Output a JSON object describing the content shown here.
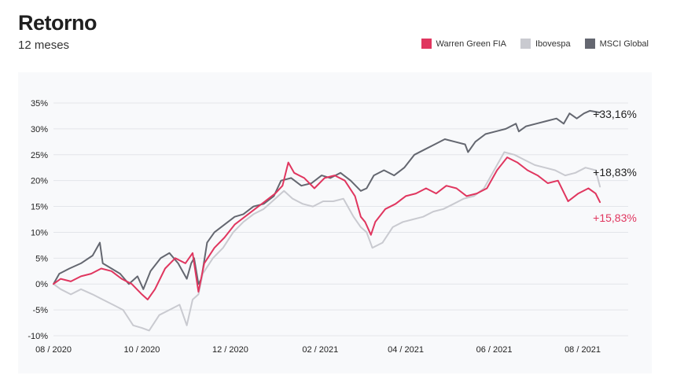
{
  "header": {
    "title": "Retorno",
    "subtitle": "12 meses"
  },
  "chart_data": {
    "type": "line",
    "title": "Retorno",
    "subtitle": "12 meses",
    "xlabel": "",
    "ylabel": "",
    "xlim": [
      "2020-08-01",
      "2021-08-16"
    ],
    "ylim": [
      -10,
      35
    ],
    "y_ticks": [
      35,
      30,
      25,
      20,
      15,
      10,
      5,
      0,
      -5,
      -10
    ],
    "y_tick_labels": [
      "35%",
      "30%",
      "25%",
      "20%",
      "15%",
      "10%",
      "5%",
      "0%",
      "-5%",
      "-10%"
    ],
    "x_ticks": [
      "2020-08-01",
      "2020-10-01",
      "2020-12-01",
      "2021-02-01",
      "2021-04-01",
      "2021-06-01",
      "2021-08-01"
    ],
    "x_tick_labels": [
      "08 / 2020",
      "10 / 2020",
      "12 / 2020",
      "02 / 2021",
      "04 / 2021",
      "06 / 2021",
      "08 / 2021"
    ],
    "grid": "horizontal",
    "legend_position": "top-right",
    "series": [
      {
        "name": "MSCI Global",
        "color": "#646770",
        "end_label": "+33,16%",
        "end_label_color": "#1f1f1f",
        "points": [
          [
            "2020-08-01",
            0
          ],
          [
            "2020-08-05",
            2
          ],
          [
            "2020-08-12",
            3
          ],
          [
            "2020-08-20",
            4
          ],
          [
            "2020-08-28",
            5.5
          ],
          [
            "2020-09-02",
            8
          ],
          [
            "2020-09-04",
            4
          ],
          [
            "2020-09-10",
            3
          ],
          [
            "2020-09-16",
            2
          ],
          [
            "2020-09-22",
            0
          ],
          [
            "2020-09-28",
            1.5
          ],
          [
            "2020-10-02",
            -1
          ],
          [
            "2020-10-07",
            2.5
          ],
          [
            "2020-10-14",
            5
          ],
          [
            "2020-10-20",
            6
          ],
          [
            "2020-10-26",
            4
          ],
          [
            "2020-11-01",
            1
          ],
          [
            "2020-11-04",
            4
          ],
          [
            "2020-11-06",
            5
          ],
          [
            "2020-11-09",
            0
          ],
          [
            "2020-11-11",
            1
          ],
          [
            "2020-11-15",
            8
          ],
          [
            "2020-11-20",
            10
          ],
          [
            "2020-11-27",
            11.5
          ],
          [
            "2020-12-04",
            13
          ],
          [
            "2020-12-10",
            13.5
          ],
          [
            "2020-12-17",
            15
          ],
          [
            "2020-12-24",
            15.5
          ],
          [
            "2020-12-31",
            17
          ],
          [
            "2021-01-05",
            20
          ],
          [
            "2021-01-12",
            20.5
          ],
          [
            "2021-01-19",
            19
          ],
          [
            "2021-01-26",
            19.5
          ],
          [
            "2021-02-02",
            21
          ],
          [
            "2021-02-08",
            20.5
          ],
          [
            "2021-02-15",
            21.5
          ],
          [
            "2021-02-22",
            20
          ],
          [
            "2021-03-01",
            18
          ],
          [
            "2021-03-05",
            18.5
          ],
          [
            "2021-03-10",
            21
          ],
          [
            "2021-03-17",
            22
          ],
          [
            "2021-03-24",
            21
          ],
          [
            "2021-03-31",
            22.5
          ],
          [
            "2021-04-07",
            25
          ],
          [
            "2021-04-14",
            26
          ],
          [
            "2021-04-21",
            27
          ],
          [
            "2021-04-28",
            28
          ],
          [
            "2021-05-05",
            27.5
          ],
          [
            "2021-05-12",
            27
          ],
          [
            "2021-05-14",
            25.5
          ],
          [
            "2021-05-19",
            27.5
          ],
          [
            "2021-05-26",
            29
          ],
          [
            "2021-06-02",
            29.5
          ],
          [
            "2021-06-09",
            30
          ],
          [
            "2021-06-16",
            31
          ],
          [
            "2021-06-18",
            29.5
          ],
          [
            "2021-06-23",
            30.5
          ],
          [
            "2021-06-30",
            31
          ],
          [
            "2021-07-07",
            31.5
          ],
          [
            "2021-07-14",
            32
          ],
          [
            "2021-07-19",
            31
          ],
          [
            "2021-07-23",
            33
          ],
          [
            "2021-07-28",
            32
          ],
          [
            "2021-08-02",
            33
          ],
          [
            "2021-08-06",
            33.5
          ],
          [
            "2021-08-13",
            33.16
          ]
        ]
      },
      {
        "name": "Ibovespa",
        "color": "#c9cad0",
        "end_label": "+18,83%",
        "end_label_color": "#1f1f1f",
        "points": [
          [
            "2020-08-01",
            0
          ],
          [
            "2020-08-06",
            -1
          ],
          [
            "2020-08-13",
            -2
          ],
          [
            "2020-08-20",
            -1
          ],
          [
            "2020-08-28",
            -2
          ],
          [
            "2020-09-04",
            -3
          ],
          [
            "2020-09-11",
            -4
          ],
          [
            "2020-09-18",
            -5
          ],
          [
            "2020-09-25",
            -8
          ],
          [
            "2020-10-01",
            -8.5
          ],
          [
            "2020-10-06",
            -9
          ],
          [
            "2020-10-13",
            -6
          ],
          [
            "2020-10-20",
            -5
          ],
          [
            "2020-10-27",
            -4
          ],
          [
            "2020-11-01",
            -8
          ],
          [
            "2020-11-05",
            -3
          ],
          [
            "2020-11-09",
            -2
          ],
          [
            "2020-11-12",
            2
          ],
          [
            "2020-11-19",
            5
          ],
          [
            "2020-11-26",
            7
          ],
          [
            "2020-12-03",
            10
          ],
          [
            "2020-12-10",
            12
          ],
          [
            "2020-12-17",
            13.5
          ],
          [
            "2020-12-24",
            14.5
          ],
          [
            "2020-12-30",
            16
          ],
          [
            "2021-01-07",
            18
          ],
          [
            "2021-01-13",
            16.5
          ],
          [
            "2021-01-20",
            15.5
          ],
          [
            "2021-01-27",
            15
          ],
          [
            "2021-02-03",
            16
          ],
          [
            "2021-02-10",
            16
          ],
          [
            "2021-02-17",
            16.5
          ],
          [
            "2021-02-24",
            13
          ],
          [
            "2021-03-01",
            11
          ],
          [
            "2021-03-05",
            10
          ],
          [
            "2021-03-09",
            7
          ],
          [
            "2021-03-16",
            8
          ],
          [
            "2021-03-23",
            11
          ],
          [
            "2021-03-30",
            12
          ],
          [
            "2021-04-06",
            12.5
          ],
          [
            "2021-04-13",
            13
          ],
          [
            "2021-04-20",
            14
          ],
          [
            "2021-04-27",
            14.5
          ],
          [
            "2021-05-04",
            15.5
          ],
          [
            "2021-05-11",
            16.5
          ],
          [
            "2021-05-18",
            17
          ],
          [
            "2021-05-25",
            18.5
          ],
          [
            "2021-06-01",
            22
          ],
          [
            "2021-06-08",
            25.5
          ],
          [
            "2021-06-15",
            25
          ],
          [
            "2021-06-22",
            24
          ],
          [
            "2021-06-29",
            23
          ],
          [
            "2021-07-06",
            22.5
          ],
          [
            "2021-07-13",
            22
          ],
          [
            "2021-07-20",
            21
          ],
          [
            "2021-07-27",
            21.5
          ],
          [
            "2021-08-03",
            22.5
          ],
          [
            "2021-08-10",
            22
          ],
          [
            "2021-08-13",
            18.83
          ]
        ]
      },
      {
        "name": "Warren Green FIA",
        "color": "#e0365f",
        "end_label": "+15,83%",
        "end_label_color": "#e0365f",
        "points": [
          [
            "2020-08-01",
            0
          ],
          [
            "2020-08-06",
            1
          ],
          [
            "2020-08-13",
            0.5
          ],
          [
            "2020-08-20",
            1.5
          ],
          [
            "2020-08-27",
            2
          ],
          [
            "2020-09-03",
            3
          ],
          [
            "2020-09-10",
            2.5
          ],
          [
            "2020-09-17",
            1
          ],
          [
            "2020-09-24",
            0
          ],
          [
            "2020-10-01",
            -2
          ],
          [
            "2020-10-05",
            -3
          ],
          [
            "2020-10-10",
            -1
          ],
          [
            "2020-10-17",
            3
          ],
          [
            "2020-10-24",
            5
          ],
          [
            "2020-10-31",
            4
          ],
          [
            "2020-11-05",
            6
          ],
          [
            "2020-11-09",
            -1.5
          ],
          [
            "2020-11-13",
            4
          ],
          [
            "2020-11-20",
            7
          ],
          [
            "2020-11-27",
            9
          ],
          [
            "2020-12-04",
            11.5
          ],
          [
            "2020-12-11",
            13
          ],
          [
            "2020-12-18",
            14.5
          ],
          [
            "2020-12-25",
            16
          ],
          [
            "2021-01-01",
            17.5
          ],
          [
            "2021-01-06",
            19
          ],
          [
            "2021-01-10",
            23.5
          ],
          [
            "2021-01-14",
            21.5
          ],
          [
            "2021-01-21",
            20.5
          ],
          [
            "2021-01-28",
            18.5
          ],
          [
            "2021-02-04",
            20.5
          ],
          [
            "2021-02-11",
            21
          ],
          [
            "2021-02-18",
            20
          ],
          [
            "2021-02-25",
            17
          ],
          [
            "2021-03-01",
            13
          ],
          [
            "2021-03-04",
            12
          ],
          [
            "2021-03-08",
            9.5
          ],
          [
            "2021-03-11",
            12
          ],
          [
            "2021-03-18",
            14.5
          ],
          [
            "2021-03-25",
            15.5
          ],
          [
            "2021-04-01",
            17
          ],
          [
            "2021-04-08",
            17.5
          ],
          [
            "2021-04-15",
            18.5
          ],
          [
            "2021-04-22",
            17.5
          ],
          [
            "2021-04-29",
            19
          ],
          [
            "2021-05-06",
            18.5
          ],
          [
            "2021-05-13",
            17
          ],
          [
            "2021-05-20",
            17.5
          ],
          [
            "2021-05-27",
            18.5
          ],
          [
            "2021-06-03",
            22
          ],
          [
            "2021-06-10",
            24.5
          ],
          [
            "2021-06-17",
            23.5
          ],
          [
            "2021-06-24",
            22
          ],
          [
            "2021-07-01",
            21
          ],
          [
            "2021-07-08",
            19.5
          ],
          [
            "2021-07-15",
            20
          ],
          [
            "2021-07-22",
            16
          ],
          [
            "2021-07-29",
            17.5
          ],
          [
            "2021-08-05",
            18.5
          ],
          [
            "2021-08-10",
            17.5
          ],
          [
            "2021-08-13",
            15.83
          ]
        ]
      }
    ]
  }
}
